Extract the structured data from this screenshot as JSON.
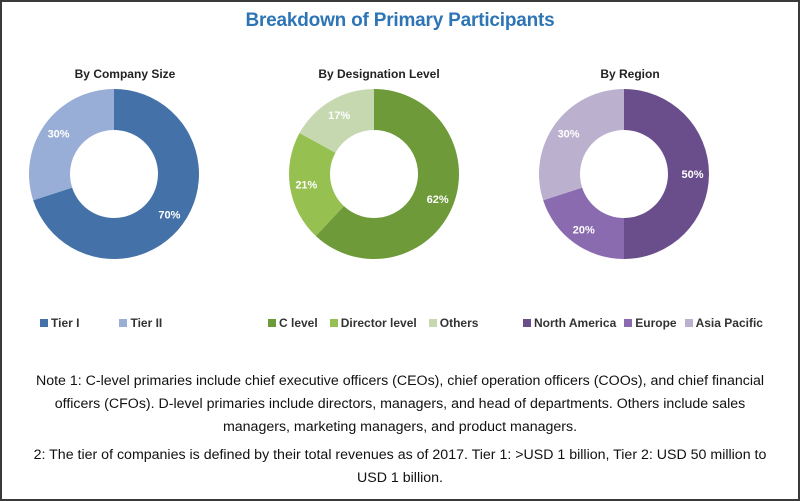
{
  "chart_data": [
    {
      "type": "pie",
      "variant": "donut",
      "title": "By Company Size",
      "categories": [
        "Tier I",
        "Tier II"
      ],
      "values": [
        70,
        30
      ],
      "labels": [
        "70%",
        "30%"
      ],
      "colors": [
        "#4472a8",
        "#98aed6"
      ],
      "legend": "bottom"
    },
    {
      "type": "pie",
      "variant": "donut",
      "title": "By Designation Level",
      "categories": [
        "C level",
        "Director level",
        "Others"
      ],
      "values": [
        62,
        21,
        17
      ],
      "labels": [
        "62%",
        "21%",
        "17%"
      ],
      "colors": [
        "#6e9a3a",
        "#96c050",
        "#c6d8b0"
      ],
      "legend": "bottom"
    },
    {
      "type": "pie",
      "variant": "donut",
      "title": "By Region",
      "categories": [
        "North America",
        "Europe",
        "Asia Pacific"
      ],
      "values": [
        50,
        20,
        30
      ],
      "labels": [
        "50%",
        "20%",
        "30%"
      ],
      "colors": [
        "#6a4e8c",
        "#8a6bb0",
        "#bcb0cf"
      ],
      "legend": "bottom"
    }
  ],
  "header": {
    "title": "Breakdown of Primary Participants"
  },
  "notes": {
    "note1": "Note 1: C-level primaries include chief executive officers (CEOs), chief operation officers (COOs), and chief financial officers (CFOs). D-level primaries include directors, managers, and head of departments. Others include sales managers, marketing managers, and product managers.",
    "note2": "2: The tier of companies is defined by their total revenues as of 2017. Tier 1: >USD 1 billion, Tier 2: USD 50 million to USD 1 billion."
  },
  "colors": {
    "title": "#2e75b6"
  }
}
